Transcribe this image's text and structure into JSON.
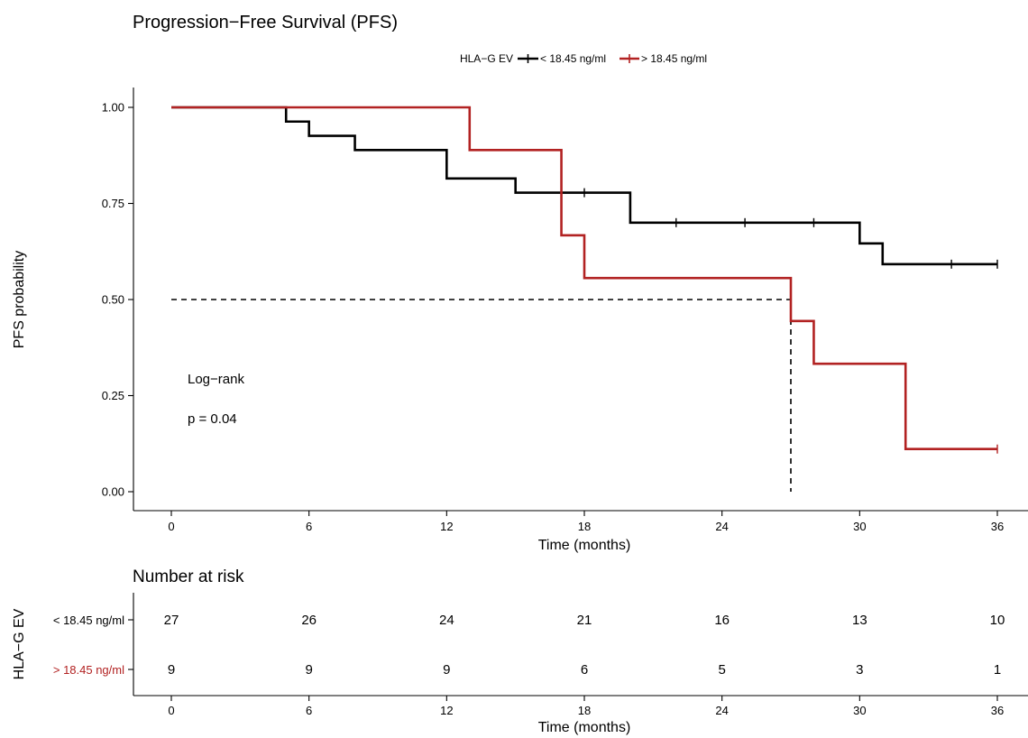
{
  "chart_data": {
    "type": "line",
    "subtype": "kaplan-meier",
    "title": "Progression−Free Survival (PFS)",
    "xlabel": "Time (months)",
    "ylabel": "PFS probability",
    "xlim": [
      0,
      36
    ],
    "ylim": [
      0,
      1
    ],
    "x_ticks": [
      0,
      6,
      12,
      18,
      24,
      30,
      36
    ],
    "x_tick_labels": [
      "0",
      "6",
      "12",
      "18",
      "24",
      "30",
      "36"
    ],
    "y_ticks": [
      0,
      0.25,
      0.5,
      0.75,
      1
    ],
    "y_tick_labels": [
      "0.00",
      "0.25",
      "0.50",
      "0.75",
      "1.00"
    ],
    "grid": false,
    "legend": {
      "title": "HLA−G EV",
      "placement": "top"
    },
    "series": [
      {
        "name": "< 18.45 ng/ml",
        "color": "#000000",
        "steps": [
          [
            0,
            1.0
          ],
          [
            5,
            0.963
          ],
          [
            6,
            0.926
          ],
          [
            8,
            0.889
          ],
          [
            12,
            0.815
          ],
          [
            15,
            0.778
          ],
          [
            20,
            0.7
          ],
          [
            30,
            0.646
          ],
          [
            31,
            0.592
          ],
          [
            36,
            0.592
          ]
        ],
        "censor_times": [
          18,
          22,
          25,
          28,
          34,
          36
        ]
      },
      {
        "name": "> 18.45 ng/ml",
        "color": "#b22222",
        "steps": [
          [
            0,
            1.0
          ],
          [
            13,
            0.889
          ],
          [
            17,
            0.667
          ],
          [
            18,
            0.556
          ],
          [
            27,
            0.444
          ],
          [
            28,
            0.333
          ],
          [
            32,
            0.111
          ],
          [
            36,
            0.111
          ]
        ],
        "censor_times": [
          36
        ]
      }
    ],
    "median_reference": {
      "y": 0.5,
      "x": 27
    },
    "annotations": [
      "Log−rank",
      "p = 0.04"
    ]
  },
  "risk_table": {
    "title": "Number at risk",
    "ylabel": "HLA−G EV",
    "xlabel": "Time (months)",
    "times": [
      0,
      6,
      12,
      18,
      24,
      30,
      36
    ],
    "rows": [
      {
        "label": "< 18.45 ng/ml",
        "color": "#000000",
        "values": [
          27,
          26,
          24,
          21,
          16,
          13,
          10
        ]
      },
      {
        "label": "> 18.45 ng/ml",
        "color": "#b22222",
        "values": [
          9,
          9,
          9,
          6,
          5,
          3,
          1
        ]
      }
    ]
  }
}
